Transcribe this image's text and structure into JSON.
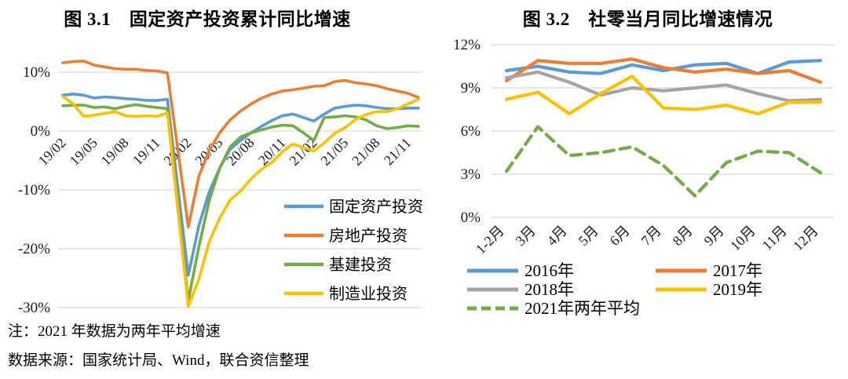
{
  "notes": {
    "line1": "注：2021 年数据为两年平均增速",
    "line2": "数据来源：国家统计局、Wind，联合资信整理"
  },
  "palette": {
    "blue": "#5B9BD5",
    "orange": "#ED7D31",
    "green": "#70AD47",
    "yellow": "#FFC000",
    "gray": "#A5A5A5",
    "gridline": "#D9D9D9",
    "text": "#1A1A1A"
  },
  "chart_data": [
    {
      "id": "fig-3-1",
      "type": "line",
      "title": "图 3.1　固定资产投资累计同比增速",
      "xlabel": "",
      "ylabel": "",
      "ylim": [
        -30,
        15
      ],
      "grid": true,
      "legend_position": "inside-right",
      "yticks": [
        10,
        0,
        -10,
        -20,
        -30
      ],
      "ytick_labels": [
        "10%",
        "0%",
        "-10%",
        "-20%",
        "-30%"
      ],
      "x_tick_labels": [
        "19/02",
        "19/05",
        "19/08",
        "19/11",
        "20/02",
        "20/05",
        "20/08",
        "20/11",
        "21/02",
        "21/05",
        "21/08",
        "21/11"
      ],
      "x_tick_indices": [
        0,
        3,
        6,
        9,
        12,
        15,
        18,
        21,
        24,
        27,
        30,
        33
      ],
      "months": [
        "19/02",
        "19/03",
        "19/04",
        "19/05",
        "19/06",
        "19/07",
        "19/08",
        "19/09",
        "19/10",
        "19/11",
        "19/12",
        "20/01",
        "20/02",
        "20/03",
        "20/04",
        "20/05",
        "20/06",
        "20/07",
        "20/08",
        "20/09",
        "20/10",
        "20/11",
        "20/12",
        "21/01",
        "21/02",
        "21/03",
        "21/04",
        "21/05",
        "21/06",
        "21/07",
        "21/08",
        "21/09",
        "21/10",
        "21/11",
        "21/12"
      ],
      "series": [
        {
          "name": "固定资产投资",
          "color": "#5B9BD5",
          "dash": null,
          "values": [
            6.1,
            6.3,
            6.1,
            5.6,
            5.8,
            5.7,
            5.5,
            5.4,
            5.2,
            5.2,
            5.4,
            -9.6,
            -24.5,
            -16.1,
            -10.3,
            -6.3,
            -3.1,
            -1.6,
            -0.3,
            0.8,
            1.8,
            2.6,
            2.9,
            2.3,
            1.7,
            2.9,
            3.9,
            4.2,
            4.4,
            4.3,
            4.0,
            3.8,
            3.8,
            3.9,
            3.9
          ]
        },
        {
          "name": "房地产投资",
          "color": "#ED7D31",
          "dash": null,
          "values": [
            11.6,
            11.8,
            11.9,
            11.2,
            10.9,
            10.6,
            10.5,
            10.5,
            10.3,
            10.2,
            9.9,
            -3.2,
            -16.3,
            -7.7,
            -3.3,
            -0.3,
            1.9,
            3.4,
            4.6,
            5.6,
            6.3,
            6.8,
            7.0,
            7.3,
            7.6,
            7.7,
            8.4,
            8.6,
            8.2,
            8.0,
            7.7,
            7.2,
            6.8,
            6.4,
            5.7
          ]
        },
        {
          "name": "基建投资",
          "color": "#70AD47",
          "dash": null,
          "values": [
            4.3,
            4.4,
            4.4,
            4.0,
            4.1,
            3.8,
            4.2,
            4.5,
            4.2,
            4.0,
            3.8,
            -12.5,
            -28.8,
            -19.7,
            -11.8,
            -6.3,
            -2.7,
            -1.0,
            -0.3,
            0.2,
            0.7,
            1.0,
            0.9,
            -0.3,
            -1.6,
            2.3,
            2.4,
            2.6,
            2.4,
            1.9,
            0.9,
            0.4,
            0.6,
            0.9,
            0.8
          ]
        },
        {
          "name": "制造业投资",
          "color": "#FFC000",
          "dash": null,
          "values": [
            5.9,
            4.6,
            2.5,
            2.7,
            3.0,
            3.3,
            2.6,
            2.5,
            2.6,
            2.5,
            3.1,
            -13.4,
            -29.8,
            -25.2,
            -18.8,
            -14.8,
            -11.7,
            -10.2,
            -8.1,
            -6.5,
            -5.3,
            -3.5,
            -2.2,
            -2.8,
            -3.4,
            -2.0,
            -0.4,
            0.6,
            2.0,
            2.8,
            3.3,
            3.3,
            3.8,
            4.6,
            5.4
          ]
        }
      ]
    },
    {
      "id": "fig-3-2",
      "type": "line",
      "title": "图 3.2　社零当月同比增速情况",
      "xlabel": "",
      "ylabel": "",
      "ylim": [
        0,
        12
      ],
      "grid": true,
      "legend_position": "below",
      "yticks": [
        12,
        9,
        6,
        3,
        0
      ],
      "ytick_labels": [
        "12%",
        "9%",
        "6%",
        "3%",
        "0%"
      ],
      "categories": [
        "1-2月",
        "3月",
        "4月",
        "5月",
        "6月",
        "7月",
        "8月",
        "9月",
        "10月",
        "11月",
        "12月"
      ],
      "series": [
        {
          "name": "2016年",
          "color": "#5B9BD5",
          "dash": null,
          "values": [
            10.2,
            10.5,
            10.1,
            10.0,
            10.6,
            10.2,
            10.6,
            10.7,
            10.0,
            10.8,
            10.9
          ]
        },
        {
          "name": "2017年",
          "color": "#ED7D31",
          "dash": null,
          "values": [
            9.5,
            10.9,
            10.7,
            10.7,
            11.0,
            10.4,
            10.1,
            10.3,
            10.0,
            10.2,
            9.4
          ]
        },
        {
          "name": "2018年",
          "color": "#A5A5A5",
          "dash": null,
          "values": [
            9.7,
            10.1,
            9.4,
            8.5,
            9.0,
            8.8,
            9.0,
            9.2,
            8.6,
            8.1,
            8.2
          ]
        },
        {
          "name": "2019年",
          "color": "#FFC000",
          "dash": null,
          "values": [
            8.2,
            8.7,
            7.2,
            8.6,
            9.8,
            7.6,
            7.5,
            7.8,
            7.2,
            8.0,
            8.0
          ]
        },
        {
          "name": "2021年两年平均",
          "color": "#70AD47",
          "dash": "13 8",
          "values": [
            3.2,
            6.3,
            4.3,
            4.5,
            4.9,
            3.6,
            1.5,
            3.8,
            4.6,
            4.5,
            3.1
          ]
        }
      ]
    }
  ]
}
